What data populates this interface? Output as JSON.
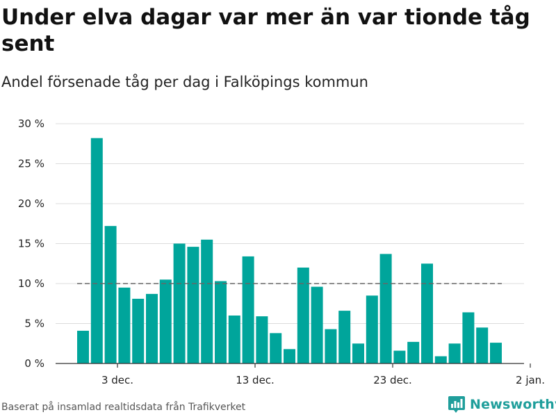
{
  "title": "Under elva dagar var mer än var tionde tåg sent",
  "subtitle": "Andel försenade tåg per dag i Falköpings kommun",
  "source": "Baserat på insamlad realtidsdata från Trafikverket",
  "brand": {
    "name": "Newsworthy",
    "icon": "newsworthy-logo-icon",
    "color": "#1f9e9b"
  },
  "chart_data": {
    "type": "bar",
    "x_start": "1 dec.",
    "x": [
      "1 dec.",
      "2 dec.",
      "3 dec.",
      "4 dec.",
      "5 dec.",
      "6 dec.",
      "7 dec.",
      "8 dec.",
      "9 dec.",
      "10 dec.",
      "11 dec.",
      "12 dec.",
      "13 dec.",
      "14 dec.",
      "15 dec.",
      "16 dec.",
      "17 dec.",
      "18 dec.",
      "19 dec.",
      "20 dec.",
      "21 dec.",
      "22 dec.",
      "23 dec.",
      "24 dec.",
      "25 dec.",
      "26 dec.",
      "27 dec.",
      "28 dec.",
      "29 dec.",
      "30 dec.",
      "31 dec."
    ],
    "values": [
      4.1,
      28.2,
      17.2,
      9.5,
      8.1,
      8.7,
      10.5,
      15.0,
      14.6,
      15.5,
      10.3,
      6.0,
      13.4,
      5.9,
      3.8,
      1.8,
      12.0,
      9.6,
      4.3,
      6.6,
      2.5,
      8.5,
      13.7,
      1.6,
      2.7,
      12.5,
      0.9,
      2.5,
      6.4,
      4.5,
      2.6
    ],
    "ylim": [
      0,
      30
    ],
    "yticks": [
      0,
      5,
      10,
      15,
      20,
      25,
      30
    ],
    "ytick_labels": [
      "0 %",
      "5 %",
      "10 %",
      "15 %",
      "20 %",
      "25 %",
      "30 %"
    ],
    "xticks": [
      {
        "label": "3 dec.",
        "index": 2.5
      },
      {
        "label": "13 dec.",
        "index": 12.5
      },
      {
        "label": "23 dec.",
        "index": 22.5
      },
      {
        "label": "2 jan.",
        "index": 32.5
      }
    ],
    "reference_line": {
      "value": 10,
      "style": "dashed"
    },
    "bar_color": "#00a59b",
    "grid": true
  }
}
